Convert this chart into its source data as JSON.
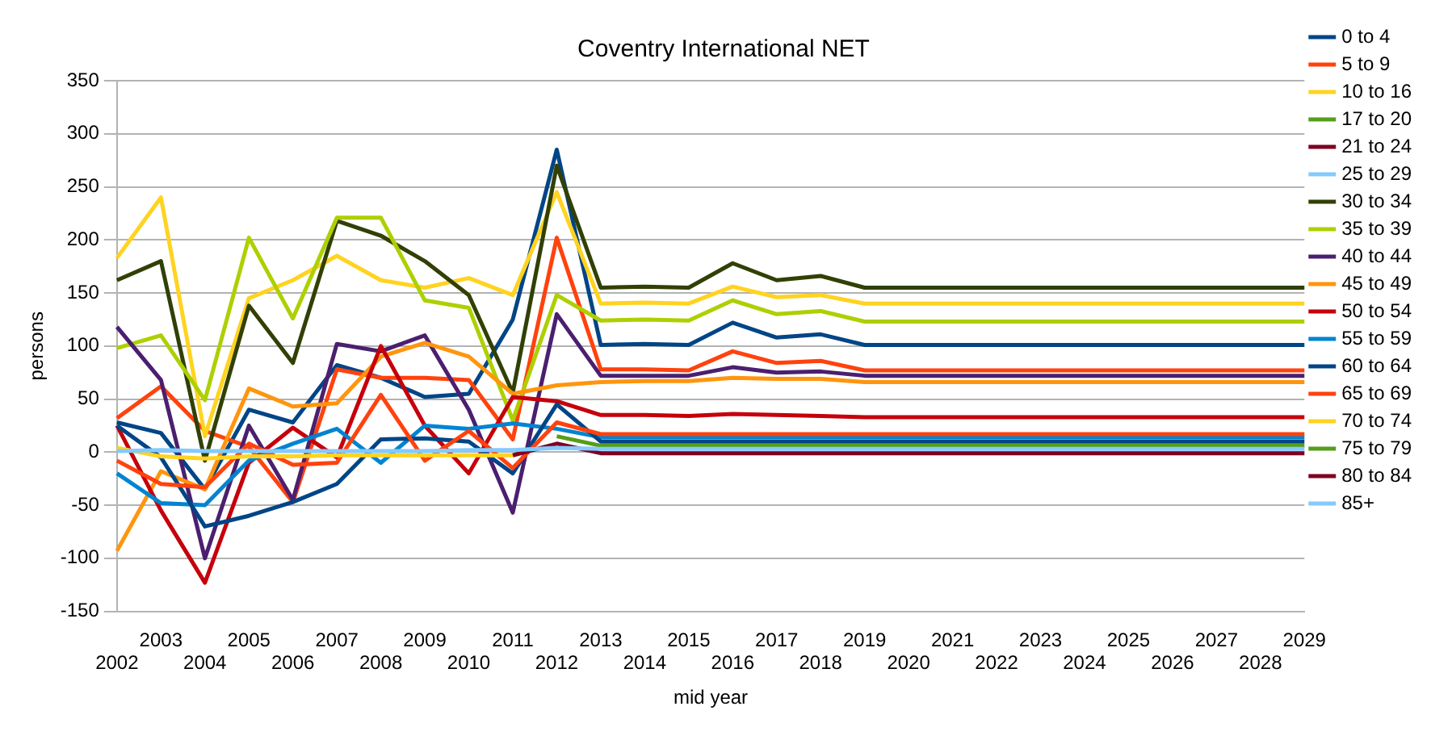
{
  "chart_data": {
    "type": "line",
    "title": "Coventry International NET",
    "xlabel": "mid year",
    "ylabel": "persons",
    "categories": [
      "2002",
      "2003",
      "2004",
      "2005",
      "2006",
      "2007",
      "2008",
      "2009",
      "2010",
      "2011",
      "2012",
      "2013",
      "2014",
      "2015",
      "2016",
      "2017",
      "2018",
      "2019",
      "2020",
      "2021",
      "2022",
      "2023",
      "2024",
      "2025",
      "2026",
      "2027",
      "2028",
      "2029"
    ],
    "ylim": [
      -150,
      350
    ],
    "yticks": [
      -150,
      -100,
      -50,
      0,
      50,
      100,
      150,
      200,
      250,
      300,
      350
    ],
    "grid": "y",
    "legend": "right",
    "marker": "none",
    "line_style": "solid",
    "series": [
      {
        "name": "0 to 4",
        "color": "#004586",
        "values": [
          28,
          18,
          -35,
          40,
          28,
          82,
          70,
          52,
          55,
          125,
          285,
          101,
          102,
          101,
          122,
          108,
          111,
          101,
          101,
          101,
          101,
          101,
          101,
          101,
          101,
          101,
          101,
          101
        ]
      },
      {
        "name": "5 to 9",
        "color": "#ff420e",
        "values": [
          32,
          62,
          20,
          5,
          -47,
          78,
          70,
          70,
          68,
          12,
          202,
          78,
          78,
          77,
          95,
          84,
          86,
          77,
          77,
          77,
          77,
          77,
          77,
          77,
          77,
          77,
          77,
          77
        ]
      },
      {
        "name": "10 to 16",
        "color": "#ffd320",
        "values": [
          183,
          240,
          15,
          145,
          162,
          185,
          162,
          155,
          164,
          148,
          245,
          140,
          141,
          140,
          156,
          146,
          148,
          140,
          140,
          140,
          140,
          140,
          140,
          140,
          140,
          140,
          140,
          140
        ]
      },
      {
        "name": "17 to 20",
        "color": "#579d1c",
        "values": [
          null,
          null,
          null,
          null,
          null,
          null,
          null,
          null,
          null,
          null,
          null,
          null,
          null,
          null,
          null,
          null,
          null,
          null,
          null,
          null,
          null,
          null,
          null,
          null,
          null,
          null,
          null,
          null
        ]
      },
      {
        "name": "21 to 24",
        "color": "#7e0021",
        "values": [
          null,
          null,
          null,
          null,
          null,
          null,
          null,
          null,
          null,
          null,
          null,
          null,
          null,
          null,
          null,
          null,
          null,
          null,
          null,
          null,
          null,
          null,
          null,
          null,
          null,
          null,
          null,
          null
        ]
      },
      {
        "name": "25 to 29",
        "color": "#83caff",
        "values": [
          null,
          null,
          null,
          null,
          null,
          null,
          null,
          null,
          null,
          null,
          null,
          null,
          null,
          null,
          null,
          null,
          null,
          null,
          null,
          null,
          null,
          null,
          null,
          null,
          null,
          null,
          null,
          null
        ]
      },
      {
        "name": "30 to 34",
        "color": "#314004",
        "values": [
          162,
          180,
          -8,
          138,
          84,
          218,
          204,
          180,
          148,
          56,
          270,
          155,
          156,
          155,
          178,
          162,
          166,
          155,
          155,
          155,
          155,
          155,
          155,
          155,
          155,
          155,
          155,
          155
        ]
      },
      {
        "name": "35 to 39",
        "color": "#aecf00",
        "values": [
          98,
          110,
          49,
          202,
          126,
          221,
          221,
          143,
          136,
          30,
          148,
          124,
          125,
          124,
          143,
          130,
          133,
          123,
          123,
          123,
          123,
          123,
          123,
          123,
          123,
          123,
          123,
          123
        ]
      },
      {
        "name": "40 to 44",
        "color": "#4b1f6f",
        "values": [
          118,
          68,
          -100,
          25,
          -45,
          102,
          95,
          110,
          40,
          -57,
          130,
          72,
          72,
          72,
          80,
          75,
          76,
          72,
          72,
          72,
          72,
          72,
          72,
          72,
          72,
          72,
          72,
          72
        ]
      },
      {
        "name": "45 to 49",
        "color": "#ff950e",
        "values": [
          -93,
          -18,
          -35,
          60,
          43,
          46,
          90,
          103,
          90,
          55,
          63,
          66,
          67,
          67,
          70,
          69,
          69,
          66,
          66,
          66,
          66,
          66,
          66,
          66,
          66,
          66,
          66,
          66
        ]
      },
      {
        "name": "50 to 54",
        "color": "#c5000b",
        "values": [
          25,
          -55,
          -123,
          -10,
          23,
          -5,
          100,
          25,
          -20,
          52,
          48,
          35,
          35,
          34,
          36,
          35,
          34,
          33,
          33,
          33,
          33,
          33,
          33,
          33,
          33,
          33,
          33,
          33
        ]
      },
      {
        "name": "55 to 59",
        "color": "#0084d1",
        "values": [
          -20,
          -48,
          -50,
          -8,
          8,
          22,
          -10,
          25,
          22,
          27,
          22,
          14,
          14,
          14,
          14,
          14,
          14,
          14,
          14,
          14,
          14,
          14,
          14,
          14,
          14,
          14,
          14,
          14
        ]
      },
      {
        "name": "60 to 64",
        "color": "#004586",
        "values": [
          25,
          -5,
          -70,
          -60,
          -47,
          -30,
          12,
          13,
          10,
          -20,
          45,
          10,
          10,
          10,
          10,
          10,
          10,
          10,
          10,
          10,
          10,
          10,
          10,
          10,
          10,
          10,
          10,
          10
        ]
      },
      {
        "name": "65 to 69",
        "color": "#ff420e",
        "values": [
          -8,
          -30,
          -33,
          8,
          -12,
          -10,
          54,
          -8,
          20,
          -15,
          28,
          17,
          17,
          17,
          17,
          17,
          17,
          17,
          17,
          17,
          17,
          17,
          17,
          17,
          17,
          17,
          17,
          17
        ]
      },
      {
        "name": "70 to 74",
        "color": "#ffd320",
        "values": [
          4,
          -4,
          -6,
          -4,
          -4,
          -3,
          -3,
          -3,
          -3,
          -3,
          null,
          null,
          null,
          null,
          null,
          null,
          null,
          null,
          null,
          null,
          null,
          null,
          null,
          null,
          null,
          null,
          null,
          null
        ]
      },
      {
        "name": "75 to 79",
        "color": "#579d1c",
        "values": [
          null,
          null,
          null,
          null,
          null,
          null,
          null,
          null,
          null,
          null,
          15,
          6,
          6,
          6,
          6,
          6,
          6,
          6,
          6,
          6,
          6,
          6,
          6,
          6,
          6,
          6,
          6,
          6
        ]
      },
      {
        "name": "80 to 84",
        "color": "#7e0021",
        "values": [
          null,
          null,
          null,
          null,
          null,
          null,
          null,
          null,
          null,
          -3,
          8,
          -1,
          -1,
          -1,
          -1,
          -1,
          -1,
          -1,
          -1,
          -1,
          -1,
          -1,
          -1,
          -1,
          -1,
          -1,
          -1,
          -1
        ]
      },
      {
        "name": "85+",
        "color": "#83caff",
        "values": [
          1,
          2,
          1,
          1,
          1,
          1,
          1,
          1,
          2,
          2,
          4,
          3,
          3,
          3,
          3,
          3,
          3,
          3,
          3,
          3,
          3,
          3,
          3,
          3,
          3,
          3,
          3,
          3
        ]
      }
    ]
  }
}
